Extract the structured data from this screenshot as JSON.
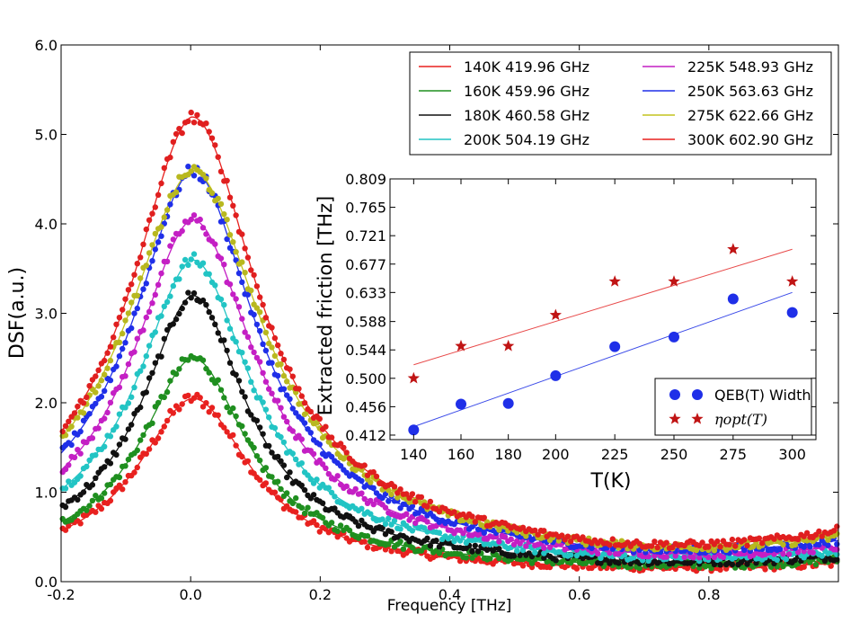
{
  "chart_data": [
    {
      "type": "scatter",
      "xlabel": "Frequency [THz]",
      "ylabel": "DSF(a.u.)",
      "xlim": [
        -0.2,
        1.0
      ],
      "ylim": [
        0.0,
        6.0
      ],
      "x_ticks": [
        -0.2,
        0.0,
        0.2,
        0.4,
        0.6,
        0.8
      ],
      "x_tick_labels": [
        "-0.2",
        "0.0",
        "0.2",
        "0.4",
        "0.6",
        "0.8"
      ],
      "y_ticks": [
        0,
        1,
        2,
        3,
        4,
        5,
        6
      ],
      "y_tick_labels": [
        "0.0",
        "1.0",
        "2.0",
        "3.0",
        "4.0",
        "5.0",
        "6.0"
      ],
      "legend_position": "top-right",
      "legend_columns": 2,
      "series": [
        {
          "name": "140K 419.96 GHz",
          "color": "#e8211f",
          "dot_color": "#e8211f",
          "peak": 2.0,
          "gamma": 0.105,
          "base": 0.22,
          "rise": 0.1
        },
        {
          "name": "160K 459.96 GHz",
          "color": "#1f8f1f",
          "dot_color": "#1f8f1f",
          "peak": 2.45,
          "gamma": 0.098,
          "base": 0.32,
          "rise": 0.12
        },
        {
          "name": "180K 460.58 GHz",
          "color": "#111111",
          "dot_color": "#111111",
          "peak": 3.15,
          "gamma": 0.096,
          "base": 0.42,
          "rise": 0.14
        },
        {
          "name": "200K 504.19 GHz",
          "color": "#22c4c4",
          "dot_color": "#22c4c4",
          "peak": 3.55,
          "gamma": 0.104,
          "base": 0.52,
          "rise": 0.16
        },
        {
          "name": "225K 548.93 GHz",
          "color": "#c41fc4",
          "dot_color": "#c41fc4",
          "peak": 4.0,
          "gamma": 0.112,
          "base": 0.6,
          "rise": 0.2
        },
        {
          "name": "250K 563.63 GHz",
          "color": "#1f2fe8",
          "dot_color": "#1f2fe8",
          "peak": 4.55,
          "gamma": 0.114,
          "base": 0.68,
          "rise": 0.25
        },
        {
          "name": "275K 622.66 GHz",
          "color": "#c4c41f",
          "dot_color": "#b8b81f",
          "peak": 4.55,
          "gamma": 0.126,
          "base": 0.72,
          "rise": 0.28
        },
        {
          "name": "300K 602.90 GHz",
          "color": "#e8211f",
          "dot_color": "#e01f1f",
          "peak": 5.15,
          "gamma": 0.118,
          "base": 0.78,
          "rise": 0.34
        }
      ]
    },
    {
      "type": "scatter",
      "title": "",
      "xlabel": "T(K)",
      "ylabel": "Extracted friction [THz]",
      "xlim": [
        130,
        310
      ],
      "ylim": [
        0.405,
        0.809
      ],
      "x_ticks": [
        140,
        160,
        180,
        200,
        225,
        250,
        275,
        300
      ],
      "x_tick_labels": [
        "140",
        "160",
        "180",
        "200",
        "225",
        "250",
        "275",
        "300"
      ],
      "y_ticks": [
        0.412,
        0.456,
        0.5,
        0.544,
        0.588,
        0.633,
        0.677,
        0.721,
        0.765,
        0.809
      ],
      "y_tick_labels": [
        "0.412",
        "0.456",
        "0.500",
        "0.544",
        "0.588",
        "0.633",
        "0.677",
        "0.721",
        "0.765",
        "0.809"
      ],
      "legend_position": "bottom-right",
      "series": [
        {
          "name": "QEB(T) Width",
          "marker": "circle",
          "color": "#1f2fe8",
          "x": [
            140,
            160,
            180,
            200,
            225,
            250,
            275,
            300
          ],
          "y": [
            0.42,
            0.46,
            0.461,
            0.504,
            0.549,
            0.564,
            0.623,
            0.602
          ],
          "fit_line": [
            [
              140,
              0.425
            ],
            [
              300,
              0.633
            ]
          ]
        },
        {
          "name": "η_opt(T)",
          "name_display": "ηopt(T)",
          "marker": "star",
          "color": "#c01414",
          "x": [
            140,
            160,
            180,
            200,
            225,
            250,
            275,
            300
          ],
          "y": [
            0.5,
            0.55,
            0.55,
            0.598,
            0.65,
            0.65,
            0.7,
            0.65
          ],
          "fit_line": [
            [
              140,
              0.521
            ],
            [
              300,
              0.7
            ]
          ]
        }
      ]
    }
  ]
}
